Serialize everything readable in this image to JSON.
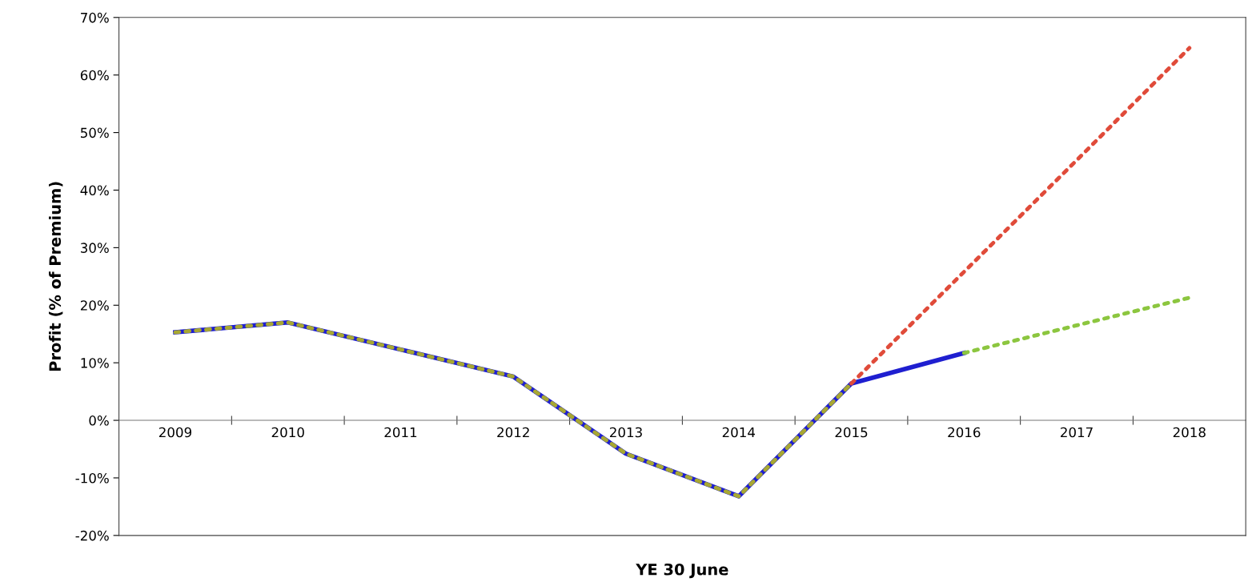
{
  "chart_data": {
    "type": "line",
    "xlabel": "YE 30 June",
    "ylabel": "Profit (% of Premium)",
    "categories": [
      "2009",
      "2010",
      "2011",
      "2012",
      "2013",
      "2014",
      "2015",
      "2016",
      "2017",
      "2018"
    ],
    "series": [
      {
        "color": "#1f1fd0",
        "line_style": "solid",
        "values": [
          15.3,
          17.0,
          12.3,
          7.6,
          -5.8,
          -13.2,
          6.4,
          11.7,
          null,
          null
        ]
      },
      {
        "color": "#a8a832",
        "line_style": "dotted",
        "values": [
          15.3,
          17.0,
          12.3,
          7.6,
          -5.8,
          -13.2,
          6.4,
          null,
          null,
          null
        ]
      },
      {
        "color": "#e04b3a",
        "line_style": "dotted",
        "values": [
          null,
          null,
          null,
          null,
          null,
          null,
          6.4,
          25.8,
          45.2,
          64.7
        ]
      },
      {
        "color": "#8cc63f",
        "line_style": "dotted",
        "values": [
          null,
          null,
          null,
          null,
          null,
          null,
          null,
          11.7,
          16.5,
          21.3
        ]
      }
    ],
    "ylim": [
      -20,
      70
    ],
    "yticks": [
      {
        "value": -20,
        "label": "-20%"
      },
      {
        "value": -10,
        "label": "-10%"
      },
      {
        "value": 0,
        "label": "0%"
      },
      {
        "value": 10,
        "label": "10%"
      },
      {
        "value": 20,
        "label": "20%"
      },
      {
        "value": 30,
        "label": "30%"
      },
      {
        "value": 40,
        "label": "40%"
      },
      {
        "value": 50,
        "label": "50%"
      },
      {
        "value": 60,
        "label": "60%"
      },
      {
        "value": 70,
        "label": "70%"
      }
    ],
    "grid": false,
    "legend": false,
    "marker": "none"
  }
}
